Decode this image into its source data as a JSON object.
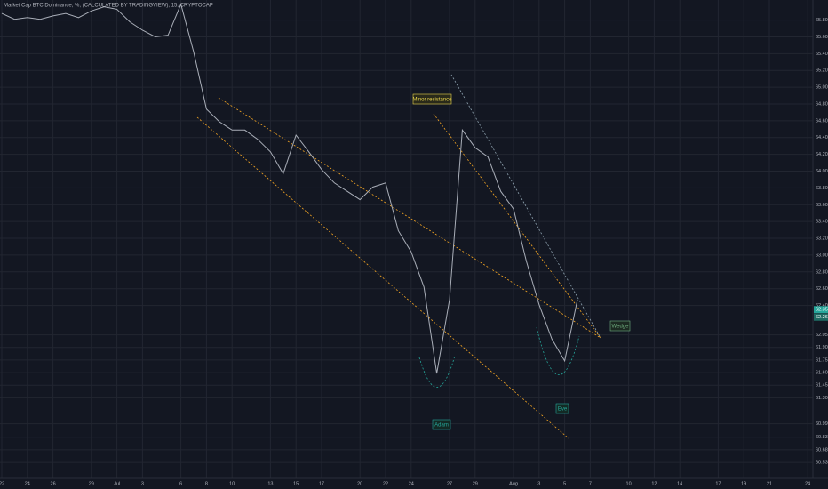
{
  "chart_data": {
    "type": "line",
    "title": "Market Cap BTC Dominance, %, (CALCULATED BY TRADINGVIEW), 15, CRYPTOCAP",
    "categories": [
      "22",
      null,
      "24",
      null,
      "26",
      null,
      null,
      "29",
      null,
      "Jul",
      null,
      "3",
      null,
      null,
      "6",
      null,
      "8",
      null,
      "10",
      null,
      null,
      "13",
      null,
      "15",
      null,
      "17",
      null,
      null,
      "20",
      null,
      "22",
      null,
      "24",
      null,
      null,
      "27",
      null,
      "29",
      null,
      null,
      "Aug",
      null,
      "3",
      null,
      "5",
      null,
      "7",
      null,
      null,
      "10",
      null,
      "12",
      null,
      "14",
      null,
      null,
      "17",
      null,
      "19",
      null,
      "21",
      null,
      null,
      "24"
    ],
    "series": [
      {
        "color": "#a9aeb8",
        "values": [
          65.88,
          65.81,
          65.83,
          65.81,
          65.85,
          65.88,
          65.83,
          65.91,
          65.96,
          65.93,
          65.78,
          65.68,
          65.6,
          65.62,
          65.99,
          65.42,
          64.74,
          64.59,
          64.49,
          64.49,
          64.38,
          64.23,
          63.97,
          64.43,
          64.23,
          64.02,
          63.86,
          63.76,
          63.66,
          63.81,
          63.86,
          63.29,
          63.04,
          62.62,
          61.59,
          62.47,
          64.49,
          64.28,
          64.17,
          63.76,
          63.55,
          62.93,
          62.41,
          62.0,
          61.74,
          62.47,
          null,
          null,
          null,
          null,
          null,
          null,
          null,
          null,
          null,
          null,
          null,
          null,
          null,
          null,
          null,
          null,
          null,
          null
        ]
      }
    ],
    "ylim": [
      60.34,
      66.04
    ],
    "yticks": [
      {
        "value": 65.8,
        "label": "65.80"
      },
      {
        "value": 65.6,
        "label": "65.60"
      },
      {
        "value": 65.4,
        "label": "65.40"
      },
      {
        "value": 65.2,
        "label": "65.20"
      },
      {
        "value": 65,
        "label": "65.00"
      },
      {
        "value": 64.8,
        "label": "64.80"
      },
      {
        "value": 64.6,
        "label": "64.60"
      },
      {
        "value": 64.4,
        "label": "64.40"
      },
      {
        "value": 64.2,
        "label": "64.20"
      },
      {
        "value": 64,
        "label": "64.00"
      },
      {
        "value": 63.8,
        "label": "63.80"
      },
      {
        "value": 63.6,
        "label": "63.60"
      },
      {
        "value": 63.4,
        "label": "63.40"
      },
      {
        "value": 63.2,
        "label": "63.20"
      },
      {
        "value": 63,
        "label": "63.00"
      },
      {
        "value": 62.8,
        "label": "62.80"
      },
      {
        "value": 62.6,
        "label": "62.60"
      },
      {
        "value": 62.4,
        "label": "62.40"
      },
      {
        "value": 62.05,
        "label": "62.05"
      },
      {
        "value": 61.9,
        "label": "61.90"
      },
      {
        "value": 61.75,
        "label": "61.75"
      },
      {
        "value": 61.6,
        "label": "61.60"
      },
      {
        "value": 61.45,
        "label": "61.45"
      },
      {
        "value": 61.3,
        "label": "61.30"
      },
      {
        "value": 60.99,
        "label": "60.99"
      },
      {
        "value": 60.83,
        "label": "60.83"
      },
      {
        "value": 60.68,
        "label": "60.68"
      },
      {
        "value": 60.53,
        "label": "60.53"
      }
    ],
    "price_labels": [
      {
        "value": 62.35,
        "label": "62.35"
      },
      {
        "value": 62.26,
        "label": "62.26"
      }
    ],
    "annotations": [
      "Minor resistance",
      "Adam",
      "Eve",
      "Wedge"
    ],
    "grid": true
  }
}
